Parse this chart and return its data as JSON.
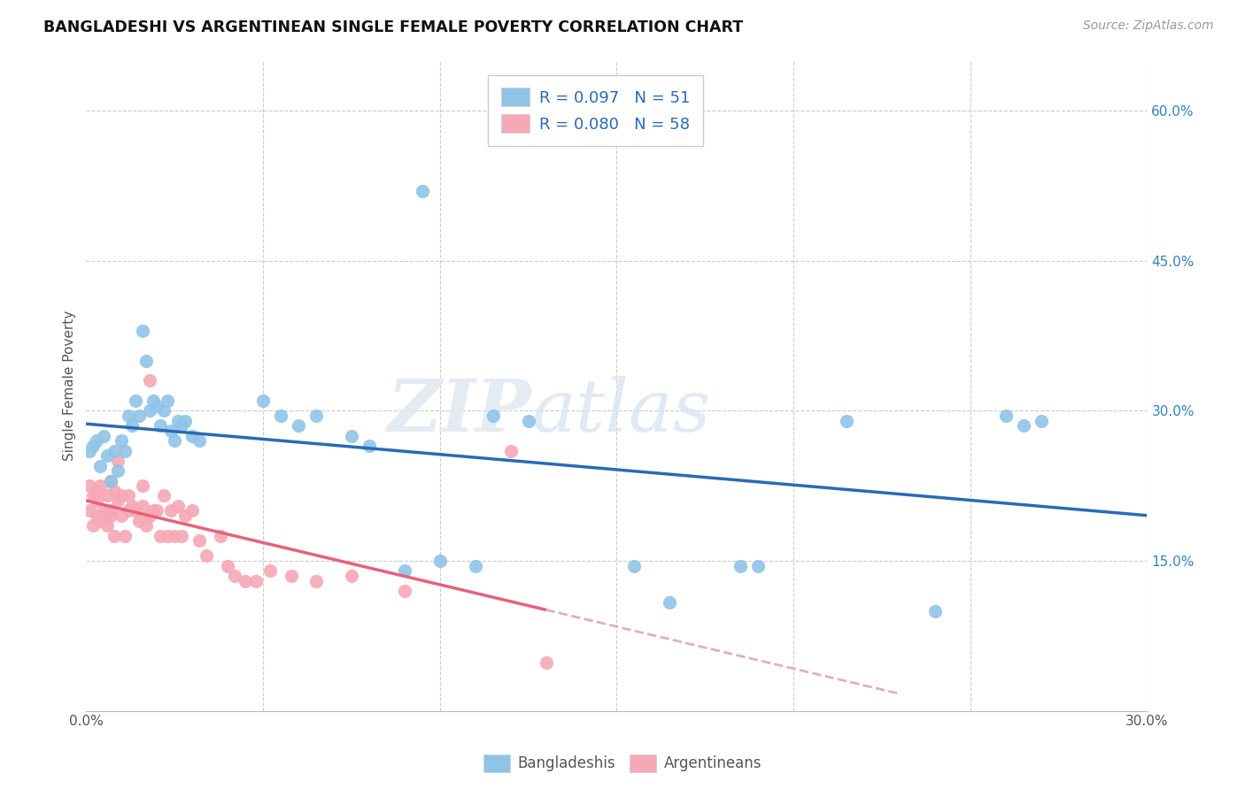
{
  "title": "BANGLADESHI VS ARGENTINEAN SINGLE FEMALE POVERTY CORRELATION CHART",
  "source": "Source: ZipAtlas.com",
  "ylabel": "Single Female Poverty",
  "xlim": [
    0.0,
    0.3
  ],
  "ylim": [
    0.0,
    0.65
  ],
  "x_ticks": [
    0.0,
    0.05,
    0.1,
    0.15,
    0.2,
    0.25,
    0.3
  ],
  "x_tick_labels": [
    "0.0%",
    "",
    "",
    "",
    "",
    "",
    "30.0%"
  ],
  "y_ticks_right": [
    0.15,
    0.3,
    0.45,
    0.6
  ],
  "y_tick_labels_right": [
    "15.0%",
    "30.0%",
    "45.0%",
    "60.0%"
  ],
  "legend1_R": "0.097",
  "legend1_N": "51",
  "legend2_R": "0.080",
  "legend2_N": "58",
  "blue_scatter_color": "#8fc4e8",
  "pink_scatter_color": "#f5a8b5",
  "blue_line_color": "#2a6ab5",
  "pink_line_color": "#e8607a",
  "pink_dashed_color": "#e0b0bb",
  "legend_bottom": [
    "Bangladeshis",
    "Argentineans"
  ],
  "bang_x": [
    0.001,
    0.002,
    0.003,
    0.004,
    0.005,
    0.006,
    0.007,
    0.008,
    0.009,
    0.01,
    0.011,
    0.012,
    0.013,
    0.014,
    0.015,
    0.016,
    0.017,
    0.018,
    0.019,
    0.02,
    0.021,
    0.022,
    0.023,
    0.024,
    0.025,
    0.026,
    0.027,
    0.028,
    0.03,
    0.032,
    0.05,
    0.055,
    0.06,
    0.065,
    0.075,
    0.08,
    0.09,
    0.095,
    0.1,
    0.11,
    0.115,
    0.125,
    0.155,
    0.165,
    0.185,
    0.19,
    0.215,
    0.24,
    0.26,
    0.265,
    0.27
  ],
  "bang_y": [
    0.26,
    0.265,
    0.27,
    0.245,
    0.275,
    0.255,
    0.23,
    0.26,
    0.24,
    0.27,
    0.26,
    0.295,
    0.285,
    0.31,
    0.295,
    0.38,
    0.35,
    0.3,
    0.31,
    0.305,
    0.285,
    0.3,
    0.31,
    0.28,
    0.27,
    0.29,
    0.285,
    0.29,
    0.275,
    0.27,
    0.31,
    0.295,
    0.285,
    0.295,
    0.275,
    0.265,
    0.14,
    0.52,
    0.15,
    0.145,
    0.295,
    0.29,
    0.145,
    0.108,
    0.145,
    0.145,
    0.29,
    0.1,
    0.295,
    0.285,
    0.29
  ],
  "arg_x": [
    0.001,
    0.001,
    0.002,
    0.002,
    0.003,
    0.003,
    0.003,
    0.004,
    0.004,
    0.005,
    0.005,
    0.006,
    0.006,
    0.007,
    0.007,
    0.007,
    0.008,
    0.008,
    0.009,
    0.009,
    0.01,
    0.01,
    0.011,
    0.012,
    0.012,
    0.013,
    0.014,
    0.015,
    0.016,
    0.016,
    0.017,
    0.018,
    0.018,
    0.019,
    0.02,
    0.021,
    0.022,
    0.023,
    0.024,
    0.025,
    0.026,
    0.027,
    0.028,
    0.03,
    0.032,
    0.034,
    0.038,
    0.04,
    0.042,
    0.045,
    0.048,
    0.052,
    0.058,
    0.065,
    0.075,
    0.09,
    0.12,
    0.13
  ],
  "arg_y": [
    0.225,
    0.2,
    0.215,
    0.185,
    0.21,
    0.195,
    0.22,
    0.19,
    0.225,
    0.2,
    0.195,
    0.185,
    0.215,
    0.2,
    0.195,
    0.23,
    0.175,
    0.22,
    0.21,
    0.25,
    0.215,
    0.195,
    0.175,
    0.2,
    0.215,
    0.205,
    0.2,
    0.19,
    0.225,
    0.205,
    0.185,
    0.195,
    0.33,
    0.2,
    0.2,
    0.175,
    0.215,
    0.175,
    0.2,
    0.175,
    0.205,
    0.175,
    0.195,
    0.2,
    0.17,
    0.155,
    0.175,
    0.145,
    0.135,
    0.13,
    0.13,
    0.14,
    0.135,
    0.13,
    0.135,
    0.12,
    0.26,
    0.048
  ]
}
